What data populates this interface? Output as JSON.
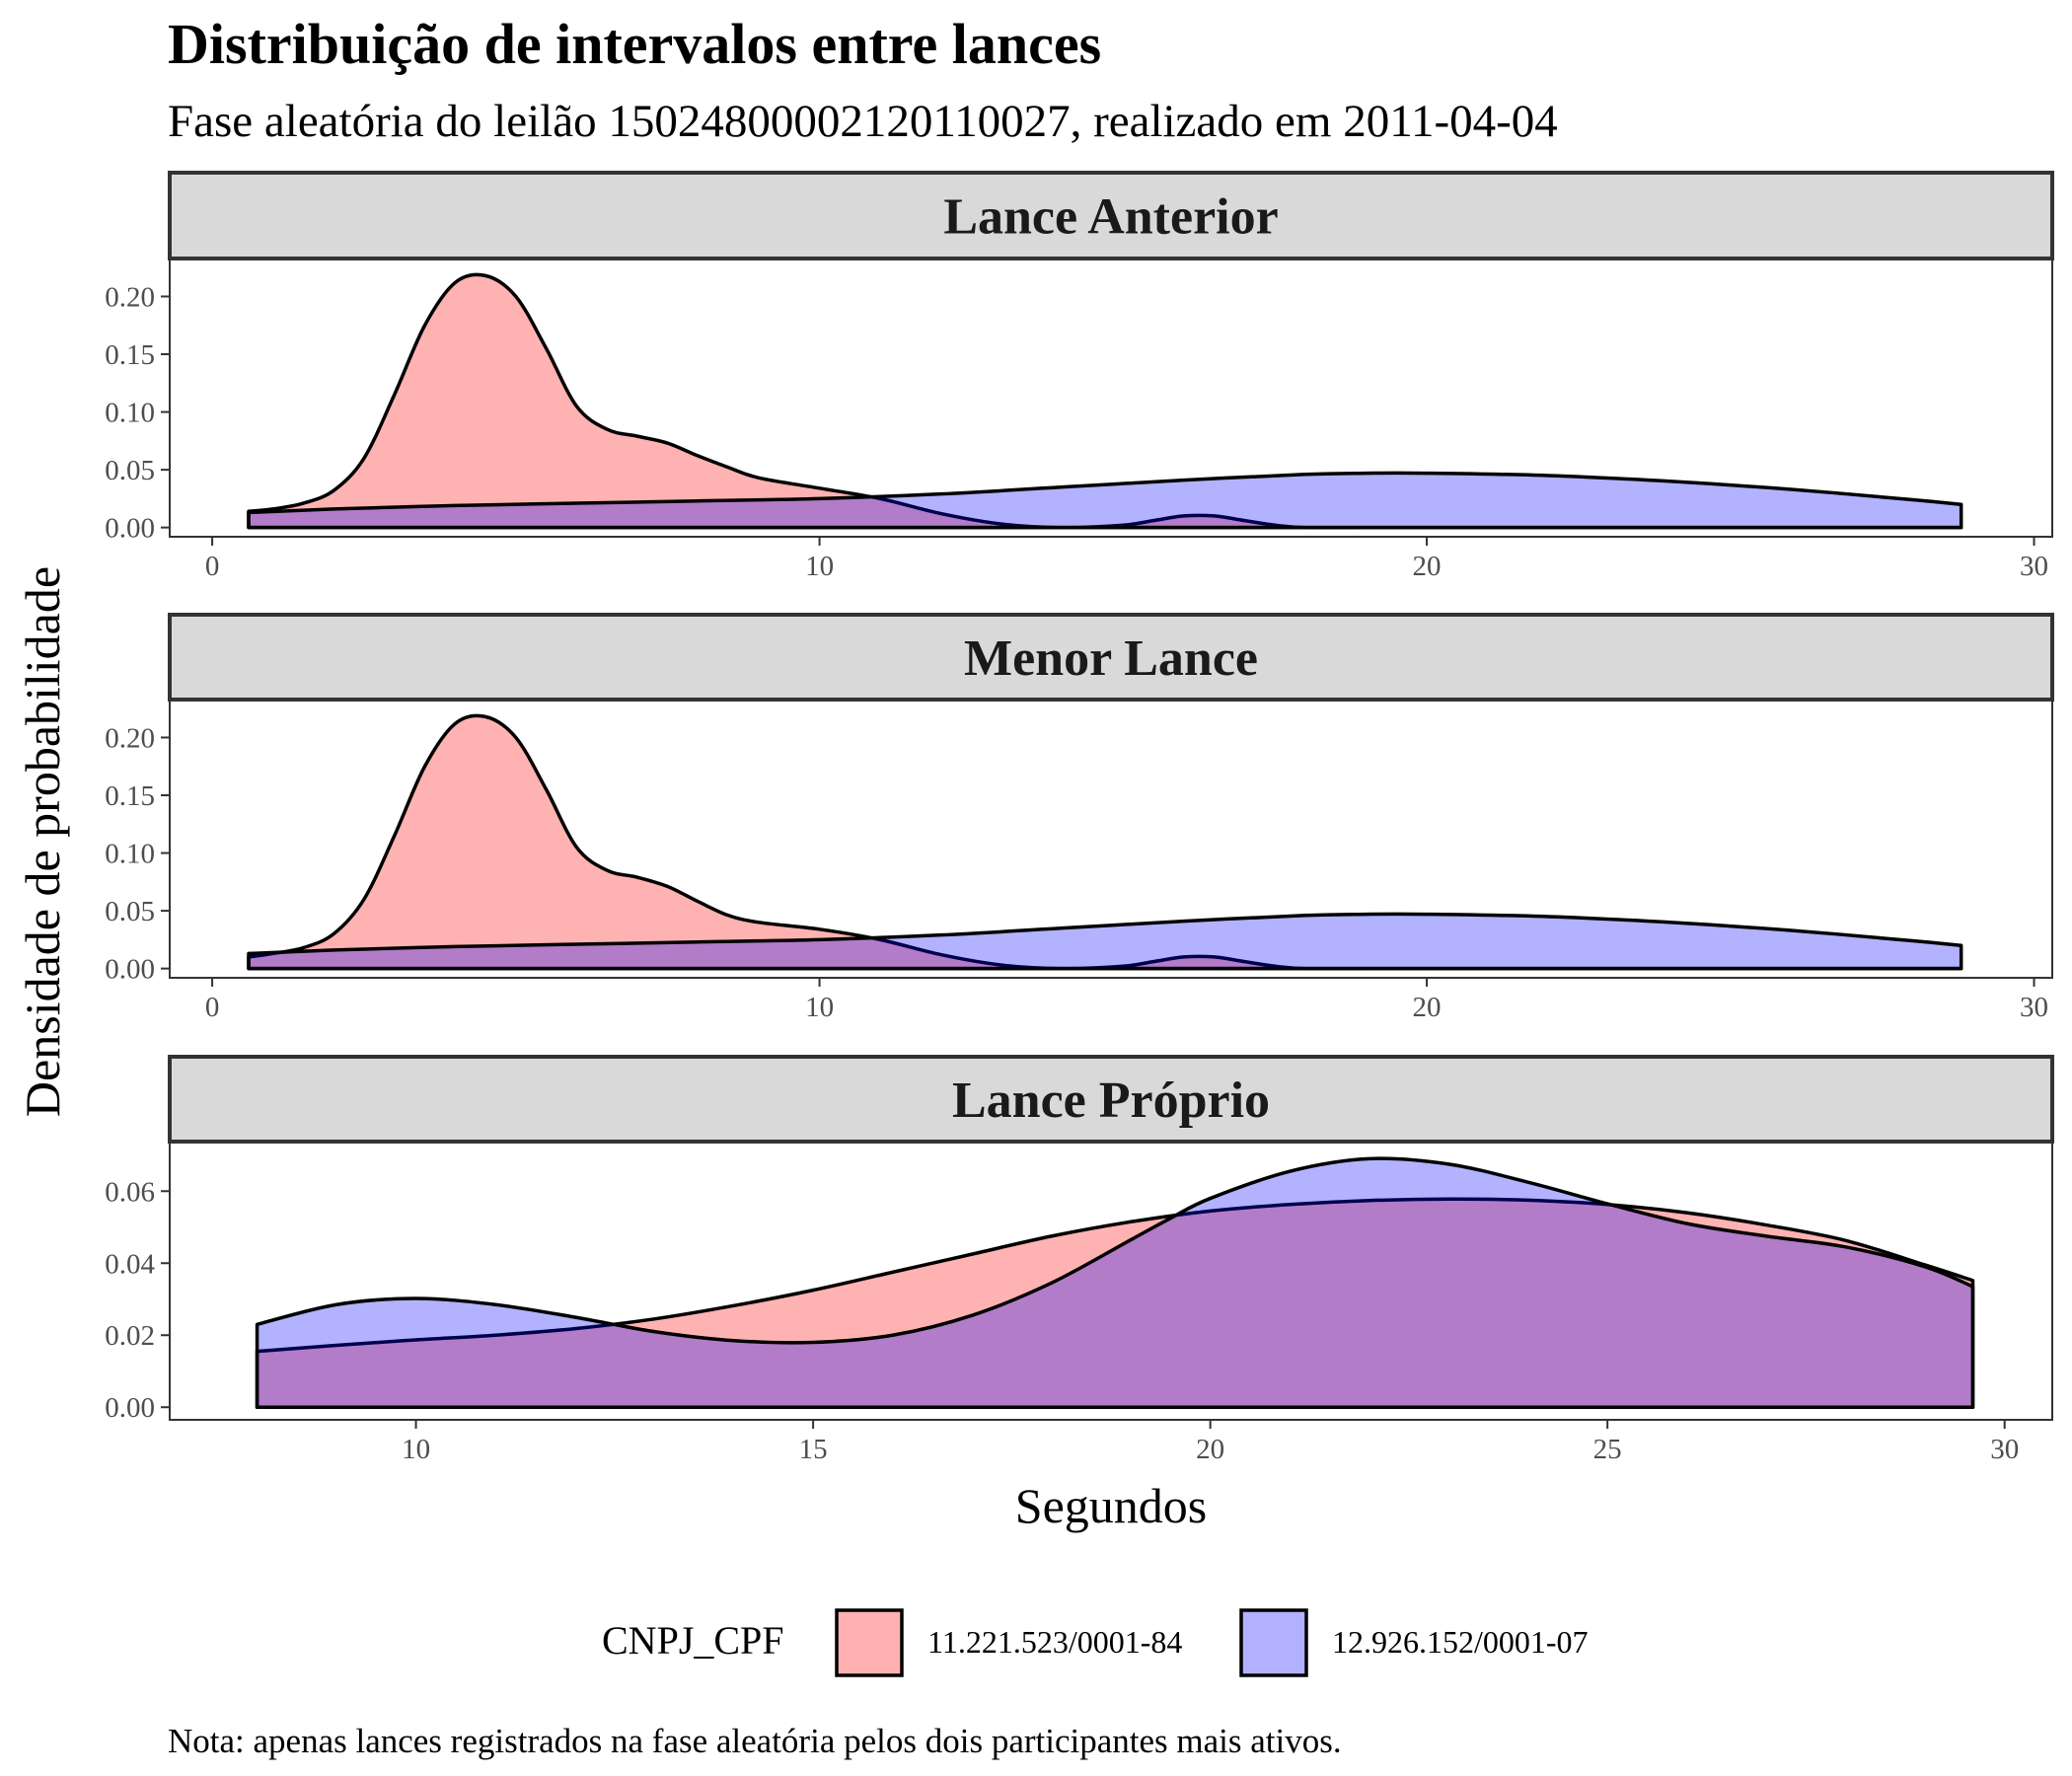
{
  "chart_data": {
    "type": "area",
    "title": "Distribuição de intervalos entre lances",
    "subtitle": "Fase aleatória do leilão 150248000021201100​27, realizado em 2011-04-04",
    "xlabel": "Segundos",
    "ylabel": "Densidade de probabilidade",
    "caption": "Nota: apenas lances registrados na fase aleatória pelos dois participantes mais ativos.",
    "legend": {
      "title": "CNPJ_CPF",
      "placement": "bottom",
      "items": [
        {
          "name": "11.221.523/0001-84",
          "color": "#F8766D"
        },
        {
          "name": "12.926.152/0001-07",
          "color": "#6666FF"
        }
      ]
    },
    "colors": {
      "series_a": "#FF0000",
      "series_b": "#0000FF",
      "overlap": "#B07FC8",
      "strip_bg": "#D9D9D9",
      "strip_border": "#333333"
    },
    "fill_alpha": 0.3,
    "grid": false,
    "panels": [
      {
        "label": "Lance Anterior",
        "xlim": [
          -0.7,
          30.3
        ],
        "ylim": [
          -0.008,
          0.232
        ],
        "xticks": [
          0,
          10,
          20,
          30
        ],
        "yticks": [
          0.0,
          0.05,
          0.1,
          0.15,
          0.2
        ],
        "ytick_labels": [
          "0.00",
          "0.05",
          "0.10",
          "0.15",
          "0.20"
        ],
        "series": [
          {
            "name": "11.221.523/0001-84",
            "x": [
              0.6,
              1,
              1.5,
              2,
              2.5,
              3,
              3.5,
              4,
              4.5,
              5,
              5.5,
              6,
              6.5,
              7,
              7.5,
              8,
              8.5,
              9,
              10,
              11,
              12,
              13,
              14,
              15,
              15.5,
              16,
              16.5,
              17,
              17.5,
              18,
              19,
              20,
              25,
              28.8
            ],
            "y": [
              0.014,
              0.016,
              0.021,
              0.032,
              0.06,
              0.115,
              0.175,
              0.212,
              0.218,
              0.2,
              0.155,
              0.105,
              0.085,
              0.079,
              0.073,
              0.062,
              0.052,
              0.043,
              0.034,
              0.025,
              0.012,
              0.003,
              0.0,
              0.002,
              0.006,
              0.01,
              0.01,
              0.006,
              0.002,
              0.0,
              0.0,
              0.0,
              0.0,
              0.0
            ]
          },
          {
            "name": "12.926.152/0001-07",
            "x": [
              0.6,
              2,
              4,
              6,
              8,
              10,
              12,
              14,
              16,
              18,
              19,
              20,
              22,
              24,
              26,
              28,
              28.8
            ],
            "y": [
              0.013,
              0.016,
              0.019,
              0.021,
              0.023,
              0.025,
              0.029,
              0.035,
              0.041,
              0.046,
              0.047,
              0.047,
              0.045,
              0.04,
              0.033,
              0.024,
              0.02
            ]
          }
        ]
      },
      {
        "label": "Menor Lance",
        "xlim": [
          -0.7,
          30.3
        ],
        "ylim": [
          -0.008,
          0.232
        ],
        "xticks": [
          0,
          10,
          20,
          30
        ],
        "yticks": [
          0.0,
          0.05,
          0.1,
          0.15,
          0.2
        ],
        "ytick_labels": [
          "0.00",
          "0.05",
          "0.10",
          "0.15",
          "0.20"
        ],
        "series": [
          {
            "name": "11.221.523/0001-84",
            "x": [
              0.6,
              1,
              1.5,
              2,
              2.5,
              3,
              3.5,
              4,
              4.5,
              5,
              5.5,
              6,
              6.5,
              7,
              7.5,
              8,
              8.5,
              9,
              10,
              11,
              12,
              13,
              14,
              15,
              15.5,
              16,
              16.5,
              17,
              17.5,
              18,
              19,
              20,
              25,
              28.8
            ],
            "y": [
              0.01,
              0.013,
              0.018,
              0.03,
              0.06,
              0.115,
              0.175,
              0.212,
              0.218,
              0.2,
              0.155,
              0.105,
              0.085,
              0.079,
              0.071,
              0.058,
              0.046,
              0.04,
              0.034,
              0.025,
              0.012,
              0.003,
              0.0,
              0.002,
              0.006,
              0.01,
              0.01,
              0.006,
              0.002,
              0.0,
              0.0,
              0.0,
              0.0,
              0.0
            ]
          },
          {
            "name": "12.926.152/0001-07",
            "x": [
              0.6,
              2,
              4,
              6,
              8,
              10,
              12,
              14,
              16,
              18,
              19,
              20,
              22,
              24,
              26,
              28,
              28.8
            ],
            "y": [
              0.013,
              0.016,
              0.019,
              0.021,
              0.023,
              0.025,
              0.029,
              0.035,
              0.041,
              0.046,
              0.047,
              0.047,
              0.045,
              0.04,
              0.033,
              0.024,
              0.02
            ]
          }
        ]
      },
      {
        "label": "Lance Próprio",
        "xlim": [
          6.9,
          30.6
        ],
        "ylim": [
          -0.0035,
          0.0735
        ],
        "xticks": [
          10,
          15,
          20,
          25,
          30
        ],
        "yticks": [
          0.0,
          0.02,
          0.04,
          0.06
        ],
        "ytick_labels": [
          "0.00",
          "0.02",
          "0.04",
          "0.06"
        ],
        "series": [
          {
            "name": "11.221.523/0001-84",
            "x": [
              8,
              9,
              10,
              11,
              12,
              13,
              14,
              15,
              16,
              17,
              18,
              19,
              20,
              21,
              22,
              23,
              24,
              25,
              26,
              27,
              28,
              29,
              29.6
            ],
            "y": [
              0.0155,
              0.0172,
              0.0187,
              0.02,
              0.0218,
              0.0245,
              0.0282,
              0.0325,
              0.0375,
              0.0425,
              0.0475,
              0.0515,
              0.0545,
              0.0563,
              0.0574,
              0.0578,
              0.0575,
              0.0563,
              0.054,
              0.0506,
              0.0463,
              0.0395,
              0.0352
            ]
          },
          {
            "name": "12.926.152/0001-07",
            "x": [
              8,
              9,
              10,
              11,
              12,
              13,
              14,
              15,
              16,
              17,
              18,
              19,
              19.5,
              20,
              21,
              22,
              23,
              24,
              25,
              26,
              27,
              28,
              29,
              29.6
            ],
            "y": [
              0.023,
              0.0285,
              0.0302,
              0.0285,
              0.025,
              0.021,
              0.0185,
              0.018,
              0.02,
              0.0255,
              0.0345,
              0.0465,
              0.0525,
              0.058,
              0.0655,
              0.069,
              0.0675,
              0.0625,
              0.0565,
              0.051,
              0.0475,
              0.0445,
              0.039,
              0.0335
            ]
          }
        ]
      }
    ]
  }
}
